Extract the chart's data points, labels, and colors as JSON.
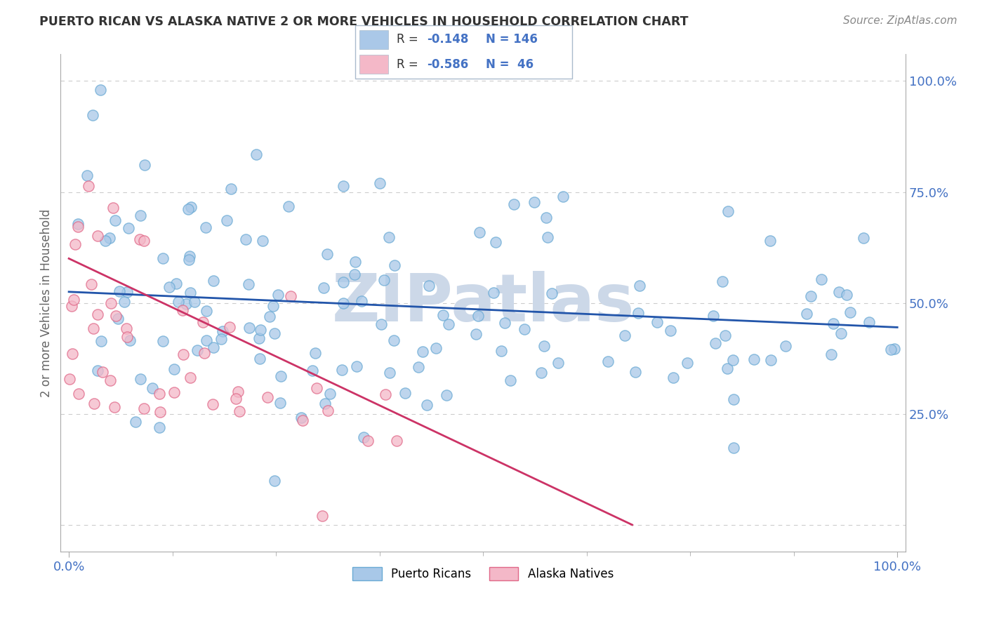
{
  "title": "PUERTO RICAN VS ALASKA NATIVE 2 OR MORE VEHICLES IN HOUSEHOLD CORRELATION CHART",
  "source": "Source: ZipAtlas.com",
  "ylabel": "2 or more Vehicles in Household",
  "ytick_values": [
    0.0,
    0.25,
    0.5,
    0.75,
    1.0
  ],
  "ytick_labels": [
    "",
    "25.0%",
    "50.0%",
    "75.0%",
    "100.0%"
  ],
  "blue_r": -0.148,
  "blue_n": 146,
  "pink_r": -0.586,
  "pink_n": 46,
  "blue_dot_color": "#a8c8e8",
  "blue_dot_edge": "#6aaad4",
  "pink_dot_color": "#f4b8c8",
  "pink_dot_edge": "#e06888",
  "blue_line_color": "#2255aa",
  "pink_line_color": "#cc3366",
  "title_color": "#333333",
  "source_color": "#888888",
  "axis_label_color": "#4472c4",
  "tick_label_color": "#4472c4",
  "grid_color": "#cccccc",
  "background": "#ffffff",
  "watermark_color": "#ccd8e8",
  "legend_box_color": "#ddecf8",
  "legend_edge_color": "#aabbcc",
  "blue_legend_fill": "#aac8e8",
  "pink_legend_fill": "#f4b8c8"
}
